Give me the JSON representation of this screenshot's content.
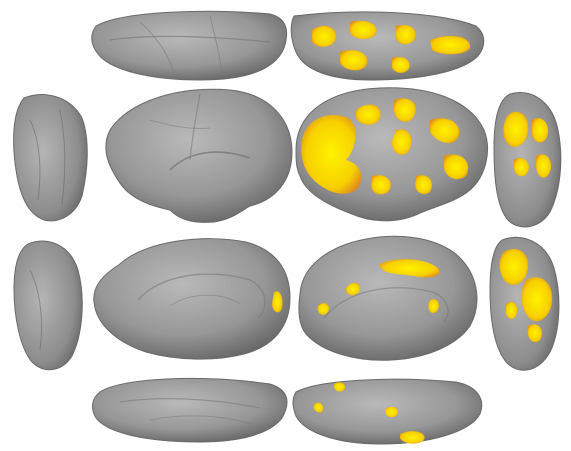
{
  "figure": {
    "kind": "cortical-surface-montage",
    "background": "#ffffff",
    "surface_color": "#8f8f8f",
    "activation_colors": {
      "high": "#ffee00",
      "mid": "#f5c400",
      "low": "#e08a1e"
    },
    "left_hemisphere": {
      "activation": "minimal"
    },
    "right_hemisphere": {
      "activation": "widespread"
    },
    "views": [
      "dorsal",
      "lateral",
      "anterior",
      "posterior",
      "medial",
      "ventral"
    ]
  }
}
